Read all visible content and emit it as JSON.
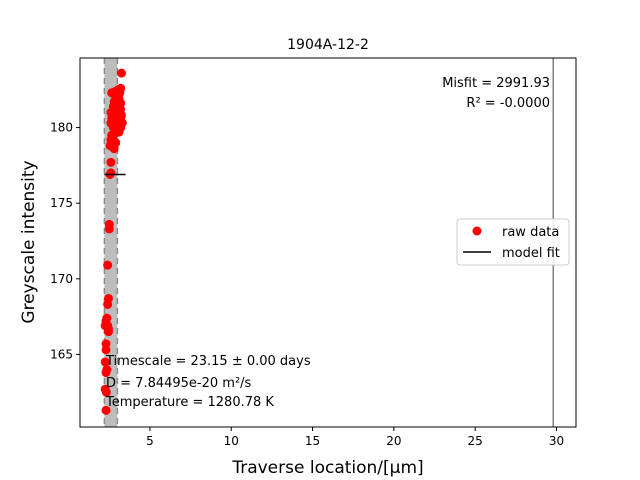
{
  "chart_data": {
    "type": "scatter",
    "title": "1904A-12-2",
    "xlabel": "Traverse location/[μm]",
    "ylabel": "Greyscale intensity",
    "xlim": [
      0.7,
      31.2
    ],
    "ylim": [
      160.2,
      184.6
    ],
    "xticks": [
      5,
      10,
      15,
      20,
      25,
      30
    ],
    "yticks": [
      165,
      170,
      175,
      180
    ],
    "legend": {
      "position": "center-right",
      "entries": [
        {
          "label": "raw data",
          "marker": "circle",
          "color": "#ff0000"
        },
        {
          "label": "model fit",
          "marker": "line",
          "color": "#000000"
        }
      ]
    },
    "annotations": {
      "misfit": "Misfit = 2991.93",
      "r2": "R² = -0.0000",
      "timescale": "Timescale = 23.15 ± 0.00 days",
      "diffusivity": "D = 7.84495e-20 m²/s",
      "temperature": "Temperature = 1280.78 K"
    },
    "shaded_band": {
      "x_start": 2.2,
      "x_end": 3.0,
      "color": "#bdbdbd"
    },
    "vertical_line": {
      "x": 29.8,
      "color": "#808080"
    },
    "model_fit": {
      "x": [
        2.2,
        3.5
      ],
      "y": [
        176.9,
        176.9
      ],
      "color": "#000000"
    },
    "series": [
      {
        "name": "raw data",
        "color": "#ff0000",
        "points": [
          [
            2.3,
            161.3
          ],
          [
            2.32,
            162.5
          ],
          [
            2.25,
            162.7
          ],
          [
            2.3,
            163.8
          ],
          [
            2.35,
            164.0
          ],
          [
            2.25,
            164.5
          ],
          [
            2.3,
            165.3
          ],
          [
            2.3,
            165.7
          ],
          [
            2.45,
            166.5
          ],
          [
            2.4,
            166.9
          ],
          [
            2.45,
            166.7
          ],
          [
            2.25,
            166.9
          ],
          [
            2.3,
            167.2
          ],
          [
            2.35,
            167.4
          ],
          [
            2.4,
            168.3
          ],
          [
            2.45,
            168.7
          ],
          [
            2.4,
            170.9
          ],
          [
            2.5,
            173.3
          ],
          [
            2.5,
            173.6
          ],
          [
            2.55,
            176.9
          ],
          [
            2.6,
            177.0
          ],
          [
            2.6,
            177.7
          ],
          [
            2.55,
            178.8
          ],
          [
            2.6,
            179.2
          ],
          [
            2.65,
            179.5
          ],
          [
            2.7,
            179.3
          ],
          [
            2.8,
            178.6
          ],
          [
            2.9,
            179.0
          ],
          [
            2.75,
            180.0
          ],
          [
            2.6,
            180.3
          ],
          [
            2.65,
            180.6
          ],
          [
            2.6,
            181.0
          ],
          [
            2.7,
            181.0
          ],
          [
            2.8,
            180.8
          ],
          [
            2.85,
            180.5
          ],
          [
            2.9,
            180.2
          ],
          [
            3.0,
            180.0
          ],
          [
            3.1,
            180.3
          ],
          [
            3.2,
            180.5
          ],
          [
            3.3,
            180.3
          ],
          [
            3.25,
            180.8
          ],
          [
            3.15,
            181.0
          ],
          [
            3.2,
            181.2
          ],
          [
            2.95,
            181.1
          ],
          [
            2.75,
            181.4
          ],
          [
            2.8,
            181.7
          ],
          [
            2.9,
            182.0
          ],
          [
            3.0,
            182.2
          ],
          [
            3.1,
            181.9
          ],
          [
            3.2,
            181.6
          ],
          [
            3.15,
            182.3
          ],
          [
            3.05,
            182.5
          ],
          [
            2.9,
            182.4
          ],
          [
            2.8,
            182.2
          ],
          [
            2.65,
            182.3
          ],
          [
            3.2,
            182.6
          ],
          [
            3.25,
            183.6
          ],
          [
            3.0,
            179.8
          ],
          [
            2.85,
            179.6
          ],
          [
            3.1,
            179.7
          ],
          [
            3.2,
            180.0
          ]
        ]
      }
    ]
  }
}
